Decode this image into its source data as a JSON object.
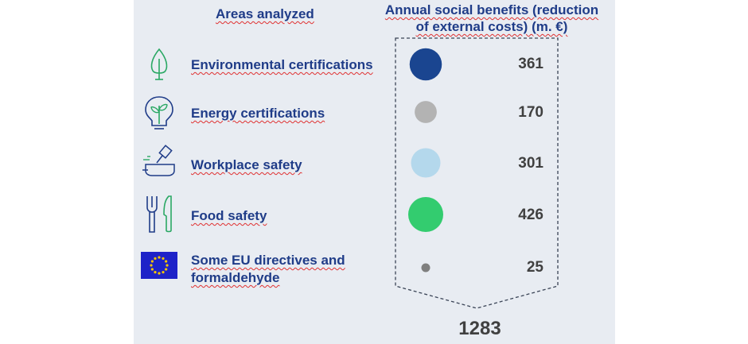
{
  "header": {
    "left": "Areas analyzed",
    "right_line1": "Annual social benefits (reduction",
    "right_line2": "of external costs) (m. €)"
  },
  "chart_data": {
    "type": "bubble",
    "categories": [
      "Environmental certifications",
      "Energy certifications",
      "Workplace safety",
      "Food safety",
      "Some EU directives and formaldehyde"
    ],
    "values": [
      361,
      170,
      301,
      426,
      25
    ],
    "colors": [
      "#1a4590",
      "#b3b3b3",
      "#b4d8ec",
      "#33cc6f",
      "#7f7f7f"
    ],
    "total": 1283
  },
  "rows": [
    {
      "label": "Environmental certifications",
      "value": "361",
      "icon": "tree-icon"
    },
    {
      "label": "Energy certifications",
      "value": "170",
      "icon": "lightbulb-leaf-icon"
    },
    {
      "label": "Workplace safety",
      "value": "301",
      "icon": "gavel-icon"
    },
    {
      "label": "Food safety",
      "value": "426",
      "icon": "fork-knife-icon"
    },
    {
      "label_line1": "Some EU directives and",
      "label_line2": "formaldehyde",
      "value": "25",
      "icon": "eu-flag-icon"
    }
  ],
  "total_label": "1283"
}
